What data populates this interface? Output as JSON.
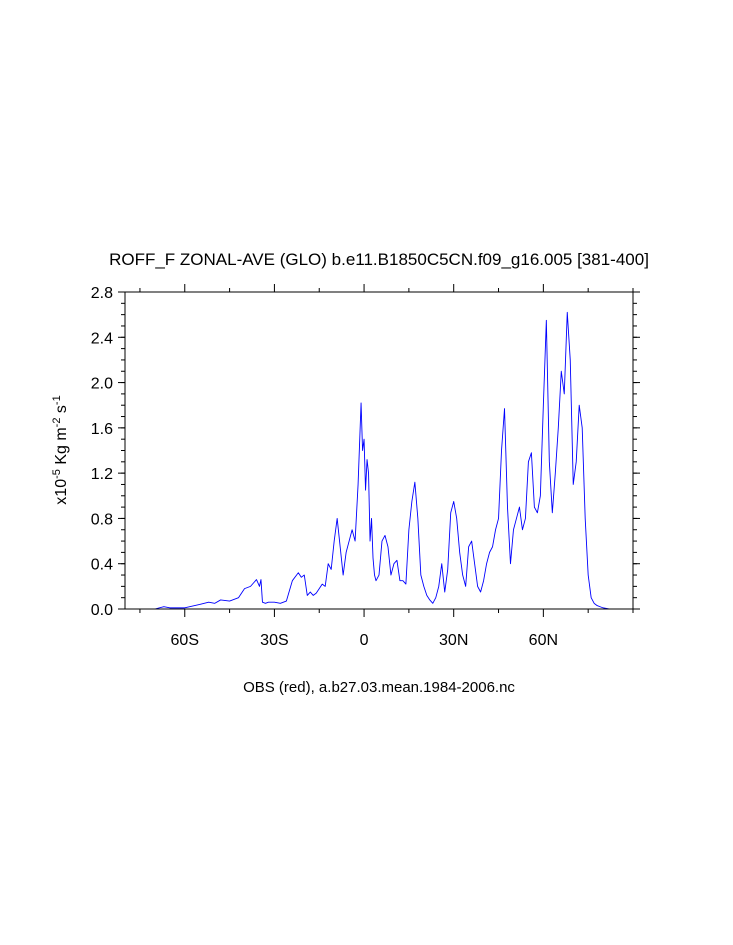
{
  "chart_data": {
    "type": "line",
    "title": "ROFF_F ZONAL-AVE (GLO) b.e11.B1850C5CN.f09_g16.005 [381-400]",
    "xlabel": "OBS (red), a.b27.03.mean.1984-2006.nc",
    "ylabel": {
      "prefix": "x10",
      "exp_power": "-5",
      "unit_main": " Kg m",
      "exp_m": "-2",
      "unit_s": " s",
      "exp_s": "-1"
    },
    "xlim": [
      -80,
      90
    ],
    "ylim": [
      0,
      2.8
    ],
    "x_ticks": [
      {
        "value": -60,
        "label": "60S"
      },
      {
        "value": -30,
        "label": "30S"
      },
      {
        "value": 0,
        "label": "0"
      },
      {
        "value": 30,
        "label": "30N"
      },
      {
        "value": 60,
        "label": "60N"
      }
    ],
    "y_ticks": [
      {
        "value": 0,
        "label": "0.0"
      },
      {
        "value": 0.4,
        "label": "0.4"
      },
      {
        "value": 0.8,
        "label": "0.8"
      },
      {
        "value": 1.2,
        "label": "1.2"
      },
      {
        "value": 1.6,
        "label": "1.6"
      },
      {
        "value": 2.0,
        "label": "2.0"
      },
      {
        "value": 2.4,
        "label": "2.4"
      },
      {
        "value": 2.8,
        "label": "2.8"
      }
    ],
    "series": [
      {
        "color": "#0000ff",
        "x": [
          -80,
          -70,
          -67,
          -65,
          -60,
          -55,
          -52,
          -50,
          -48,
          -45,
          -42,
          -40,
          -38,
          -36,
          -35,
          -34.5,
          -34,
          -33,
          -32,
          -30,
          -28,
          -26,
          -24,
          -22,
          -21,
          -20,
          -19,
          -18,
          -17,
          -16,
          -15,
          -14,
          -13,
          -12,
          -11,
          -10,
          -9,
          -8,
          -7,
          -6,
          -5,
          -4,
          -3,
          -2,
          -1,
          -0.5,
          0,
          0.5,
          1,
          1.5,
          2,
          2.5,
          3,
          3.5,
          4,
          5,
          6,
          7,
          8,
          9,
          10,
          11,
          12,
          13,
          14,
          15,
          16,
          17,
          18,
          19,
          20,
          21,
          22,
          23,
          24,
          25,
          26,
          27,
          28,
          29,
          30,
          31,
          32,
          33,
          34,
          35,
          36,
          37,
          38,
          39,
          40,
          41,
          42,
          43,
          44,
          45,
          46,
          47,
          48,
          49,
          50,
          51,
          52,
          53,
          54,
          55,
          56,
          57,
          58,
          59,
          60,
          61,
          62,
          63,
          64,
          65,
          66,
          67,
          68,
          69,
          70,
          71,
          72,
          73,
          74,
          75,
          76,
          77,
          78,
          79,
          80,
          82,
          85,
          90
        ],
        "y": [
          0,
          0,
          0.02,
          0.01,
          0.01,
          0.04,
          0.06,
          0.05,
          0.08,
          0.07,
          0.1,
          0.18,
          0.2,
          0.26,
          0.2,
          0.26,
          0.06,
          0.05,
          0.06,
          0.06,
          0.05,
          0.07,
          0.25,
          0.32,
          0.28,
          0.3,
          0.12,
          0.15,
          0.12,
          0.14,
          0.18,
          0.22,
          0.2,
          0.4,
          0.35,
          0.6,
          0.8,
          0.55,
          0.3,
          0.5,
          0.6,
          0.7,
          0.6,
          1.1,
          1.82,
          1.4,
          1.5,
          1.05,
          1.32,
          1.2,
          0.6,
          0.8,
          0.45,
          0.3,
          0.25,
          0.3,
          0.6,
          0.65,
          0.55,
          0.3,
          0.4,
          0.43,
          0.25,
          0.25,
          0.22,
          0.7,
          0.95,
          1.12,
          0.8,
          0.3,
          0.2,
          0.12,
          0.08,
          0.05,
          0.1,
          0.2,
          0.4,
          0.15,
          0.35,
          0.85,
          0.95,
          0.8,
          0.5,
          0.3,
          0.2,
          0.55,
          0.6,
          0.4,
          0.2,
          0.15,
          0.25,
          0.4,
          0.5,
          0.55,
          0.7,
          0.8,
          1.4,
          1.77,
          0.9,
          0.4,
          0.7,
          0.8,
          0.9,
          0.7,
          0.8,
          1.3,
          1.38,
          0.9,
          0.85,
          1.0,
          1.8,
          2.55,
          1.3,
          0.85,
          1.2,
          1.6,
          2.1,
          1.9,
          2.62,
          2.2,
          1.1,
          1.3,
          1.8,
          1.6,
          0.8,
          0.3,
          0.1,
          0.05,
          0.03,
          0.02,
          0.01,
          0.0,
          0,
          0
        ]
      }
    ]
  }
}
